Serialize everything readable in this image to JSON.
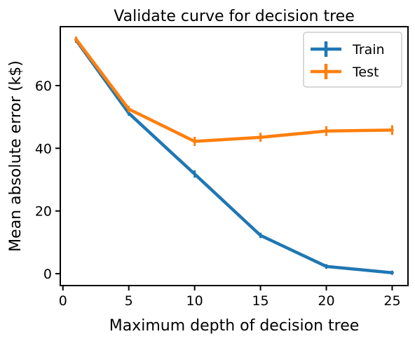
{
  "chart_data": {
    "type": "line",
    "title": "Validate curve for decision tree",
    "xlabel": "Maximum depth of decision tree",
    "ylabel": "Mean absolute error (k$)",
    "xlim": [
      -0.2,
      26.2
    ],
    "ylim": [
      -3.8,
      78.8
    ],
    "xticks": [
      0,
      5,
      10,
      15,
      20,
      25
    ],
    "yticks": [
      0,
      20,
      40,
      60
    ],
    "grid": false,
    "legend_position": "top-right",
    "x": [
      1,
      5,
      10,
      15,
      20,
      25
    ],
    "series": [
      {
        "name": "Train",
        "color": "#1f77b4",
        "values": [
          74.5,
          51.2,
          31.8,
          12.2,
          2.3,
          0.3
        ],
        "errors": [
          0.3,
          0.3,
          0.6,
          0.3,
          0.2,
          0.1
        ]
      },
      {
        "name": "Test",
        "color": "#ff7f0e",
        "values": [
          74.8,
          52.5,
          42.2,
          43.5,
          45.5,
          45.8
        ],
        "errors": [
          0.3,
          0.5,
          0.9,
          0.9,
          1.0,
          1.0
        ]
      }
    ]
  }
}
